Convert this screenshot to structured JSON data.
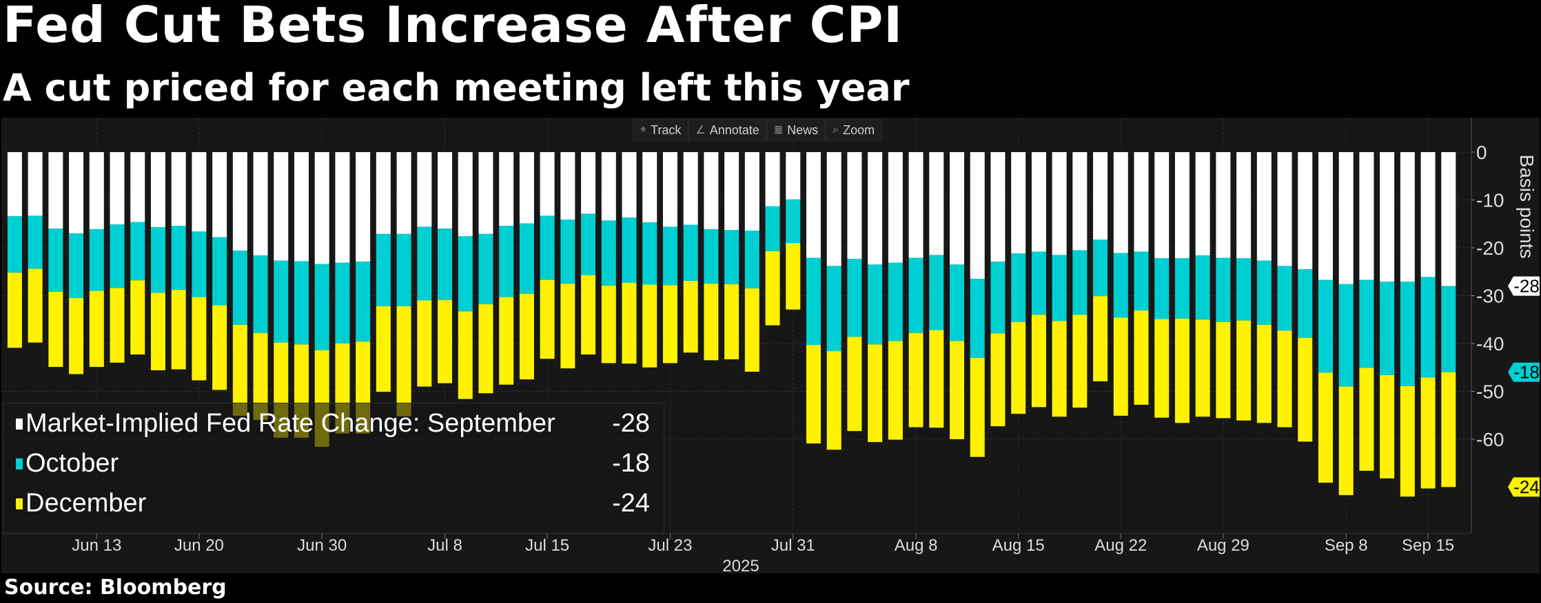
{
  "title": "Fed Cut Bets Increase After CPI",
  "subtitle": "A cut priced for each meeting left this year",
  "source": "Source: Bloomberg",
  "toolbar": [
    {
      "icon": "crosshair-icon",
      "glyph": "⌖",
      "label": "Track"
    },
    {
      "icon": "pencil-icon",
      "glyph": "∠",
      "label": "Annotate"
    },
    {
      "icon": "news-icon",
      "glyph": "≣",
      "label": "News"
    },
    {
      "icon": "zoom-icon",
      "glyph": "⌕",
      "label": "Zoom"
    }
  ],
  "legend": {
    "items": [
      {
        "label": "Market-Implied Fed Rate Change: September",
        "value": "-28"
      },
      {
        "label": "October",
        "value": "-18"
      },
      {
        "label": "December",
        "value": "-24"
      }
    ]
  },
  "colors": {
    "september": "#ffffff",
    "october": "#00cfd1",
    "december": "#fff200",
    "background": "#171717"
  },
  "chart_data": {
    "type": "bar",
    "stacked": true,
    "title": "Fed Cut Bets Increase After CPI",
    "subtitle": "A cut priced for each meeting left this year",
    "ylabel": "Basis points",
    "ylim": [
      -70,
      5
    ],
    "yticks": [
      0,
      -10,
      -20,
      -30,
      -40,
      -50,
      -60
    ],
    "ytick_labels": [
      "0",
      "-10",
      "-20",
      "-30",
      "-40",
      "-50",
      "-60"
    ],
    "x_year_label": "2025",
    "x_ticks": [
      {
        "label": "Jun 13",
        "index": 4
      },
      {
        "label": "Jun 20",
        "index": 9
      },
      {
        "label": "Jun 30",
        "index": 15
      },
      {
        "label": "Jul 8",
        "index": 21
      },
      {
        "label": "Jul 15",
        "index": 26
      },
      {
        "label": "Jul 23",
        "index": 32
      },
      {
        "label": "Jul 31",
        "index": 38
      },
      {
        "label": "Aug 8",
        "index": 44
      },
      {
        "label": "Aug 15",
        "index": 49
      },
      {
        "label": "Aug 22",
        "index": 54
      },
      {
        "label": "Aug 29",
        "index": 59
      },
      {
        "label": "Sep 8",
        "index": 65
      },
      {
        "label": "Sep 15",
        "index": 69
      }
    ],
    "grid": true,
    "legend_position": "bottom-left",
    "series": [
      {
        "name": "September",
        "last_label": "-28",
        "values": [
          -13.4,
          -13.3,
          -16.0,
          -17.0,
          -16.1,
          -15.1,
          -14.6,
          -15.7,
          -15.4,
          -16.6,
          -17.8,
          -20.6,
          -21.6,
          -22.7,
          -22.8,
          -23.4,
          -23.1,
          -22.9,
          -17.1,
          -17.1,
          -15.6,
          -16.0,
          -17.6,
          -17.1,
          -15.4,
          -14.9,
          -13.3,
          -14.1,
          -12.9,
          -14.3,
          -13.7,
          -14.7,
          -15.6,
          -15.2,
          -16.1,
          -16.3,
          -16.4,
          -11.3,
          -9.9,
          -22.1,
          -23.8,
          -22.3,
          -23.5,
          -23.1,
          -22.1,
          -21.5,
          -23.5,
          -26.5,
          -22.9,
          -21.2,
          -20.8,
          -21.5,
          -20.5,
          -18.3,
          -21.1,
          -20.8,
          -22.2,
          -22.2,
          -21.6,
          -22.1,
          -22.2,
          -22.7,
          -23.8,
          -24.5,
          -26.7,
          -27.6,
          -26.7,
          -27.1,
          -27.1,
          -26.1,
          -28.0
        ]
      },
      {
        "name": "October",
        "last_label": "-18",
        "values": [
          -11.8,
          -11.1,
          -13.2,
          -13.5,
          -12.9,
          -13.3,
          -12.2,
          -13.7,
          -13.4,
          -13.7,
          -14.2,
          -15.5,
          -16.2,
          -17.1,
          -17.4,
          -18.0,
          -16.9,
          -16.7,
          -15.1,
          -15.1,
          -15.4,
          -14.9,
          -15.7,
          -14.7,
          -14.9,
          -14.7,
          -13.4,
          -13.4,
          -12.8,
          -13.6,
          -13.6,
          -13.0,
          -12.2,
          -11.7,
          -11.4,
          -11.3,
          -12.1,
          -9.4,
          -9.1,
          -18.2,
          -17.8,
          -16.3,
          -16.7,
          -16.4,
          -15.7,
          -15.7,
          -16.0,
          -16.5,
          -15.0,
          -14.3,
          -13.2,
          -13.8,
          -13.5,
          -11.8,
          -13.5,
          -12.3,
          -12.7,
          -12.6,
          -13.4,
          -13.4,
          -13.0,
          -13.4,
          -13.5,
          -14.3,
          -19.4,
          -21.4,
          -18.4,
          -19.5,
          -21.8,
          -21.0,
          -18.0
        ]
      },
      {
        "name": "December",
        "last_label": "-24",
        "values": [
          -15.7,
          -15.4,
          -15.7,
          -15.9,
          -15.9,
          -15.6,
          -15.5,
          -16.2,
          -16.6,
          -17.4,
          -17.7,
          -19.0,
          -18.2,
          -19.9,
          -19.5,
          -20.2,
          -18.8,
          -19.2,
          -17.9,
          -23.0,
          -18.0,
          -17.4,
          -18.3,
          -18.6,
          -18.3,
          -17.9,
          -16.5,
          -17.7,
          -16.6,
          -16.2,
          -16.9,
          -17.3,
          -16.3,
          -15.0,
          -16.0,
          -15.7,
          -17.4,
          -15.5,
          -13.9,
          -20.6,
          -20.6,
          -19.7,
          -20.4,
          -20.6,
          -19.7,
          -20.4,
          -20.5,
          -20.7,
          -19.4,
          -19.2,
          -19.3,
          -20.0,
          -19.4,
          -17.8,
          -20.5,
          -19.7,
          -20.6,
          -21.8,
          -20.3,
          -20.1,
          -20.9,
          -20.5,
          -20.2,
          -21.7,
          -23.0,
          -22.7,
          -21.5,
          -21.6,
          -23.1,
          -23.2,
          -24.0
        ]
      }
    ]
  }
}
